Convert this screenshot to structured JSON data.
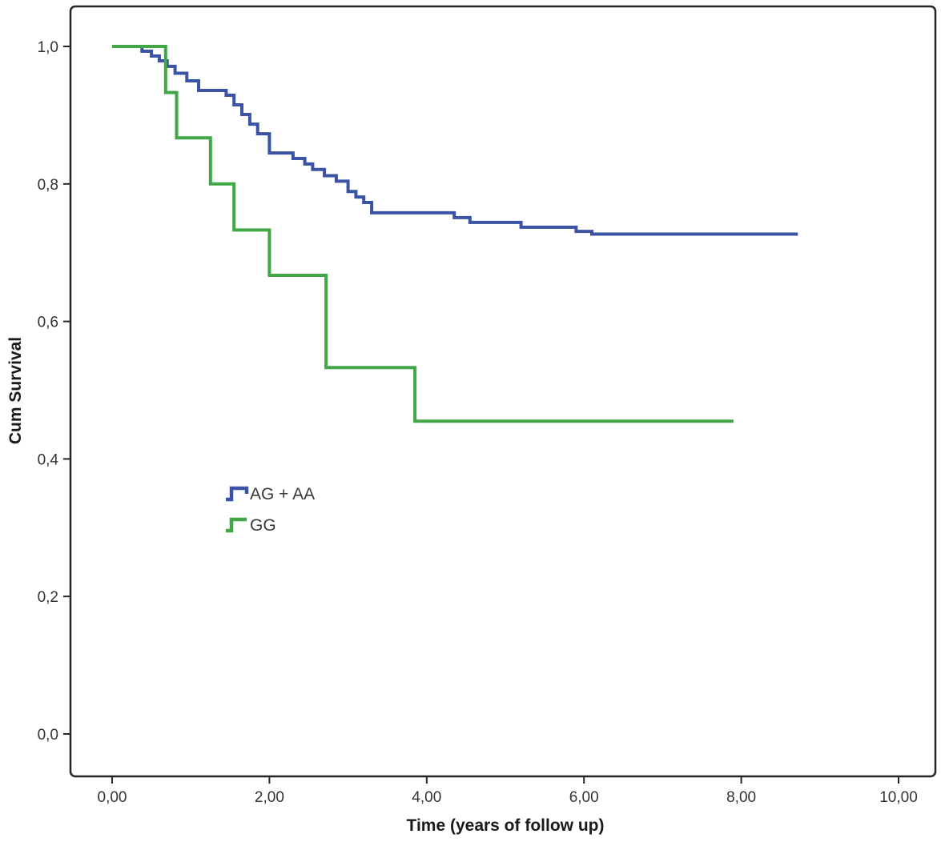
{
  "figure": {
    "background": "#ffffff",
    "frame_color": "#262626"
  },
  "chart_data": {
    "type": "line",
    "subtype": "kaplan-meier-step-survival",
    "title": "",
    "xlabel": "Time (years of follow up)",
    "ylabel": "Cum Survival",
    "xlim": [
      0,
      10
    ],
    "ylim": [
      0,
      1
    ],
    "grid": false,
    "legend_position": "inside-left-middle",
    "x_ticks": [
      {
        "v": 0,
        "label": "0,00"
      },
      {
        "v": 2,
        "label": "2,00"
      },
      {
        "v": 4,
        "label": "4,00"
      },
      {
        "v": 6,
        "label": "6,00"
      },
      {
        "v": 8,
        "label": "8,00"
      },
      {
        "v": 10,
        "label": "10,00"
      }
    ],
    "y_ticks": [
      {
        "v": 0.0,
        "label": "0,0"
      },
      {
        "v": 0.2,
        "label": "0,2"
      },
      {
        "v": 0.4,
        "label": "0,4"
      },
      {
        "v": 0.6,
        "label": "0,6"
      },
      {
        "v": 0.8,
        "label": "0,8"
      },
      {
        "v": 1.0,
        "label": "1,0"
      }
    ],
    "series": [
      {
        "name": "AG + AA",
        "color": "#3a53a4",
        "points": [
          [
            0.0,
            1.0
          ],
          [
            0.38,
            0.993
          ],
          [
            0.5,
            0.986
          ],
          [
            0.6,
            0.979
          ],
          [
            0.7,
            0.971
          ],
          [
            0.8,
            0.961
          ],
          [
            0.95,
            0.95
          ],
          [
            1.1,
            0.936
          ],
          [
            1.45,
            0.929
          ],
          [
            1.55,
            0.915
          ],
          [
            1.65,
            0.901
          ],
          [
            1.75,
            0.887
          ],
          [
            1.85,
            0.873
          ],
          [
            2.0,
            0.845
          ],
          [
            2.3,
            0.837
          ],
          [
            2.45,
            0.829
          ],
          [
            2.55,
            0.821
          ],
          [
            2.7,
            0.812
          ],
          [
            2.85,
            0.804
          ],
          [
            3.0,
            0.789
          ],
          [
            3.1,
            0.781
          ],
          [
            3.2,
            0.773
          ],
          [
            3.3,
            0.758
          ],
          [
            4.35,
            0.751
          ],
          [
            4.55,
            0.744
          ],
          [
            5.2,
            0.737
          ],
          [
            5.9,
            0.731
          ],
          [
            6.1,
            0.727
          ],
          [
            8.72,
            0.727
          ]
        ]
      },
      {
        "name": "GG",
        "color": "#41a747",
        "points": [
          [
            0.0,
            1.0
          ],
          [
            0.68,
            0.933
          ],
          [
            0.82,
            0.867
          ],
          [
            1.25,
            0.8
          ],
          [
            1.55,
            0.733
          ],
          [
            2.0,
            0.667
          ],
          [
            2.72,
            0.533
          ],
          [
            3.85,
            0.455
          ],
          [
            7.9,
            0.455
          ]
        ]
      }
    ]
  }
}
